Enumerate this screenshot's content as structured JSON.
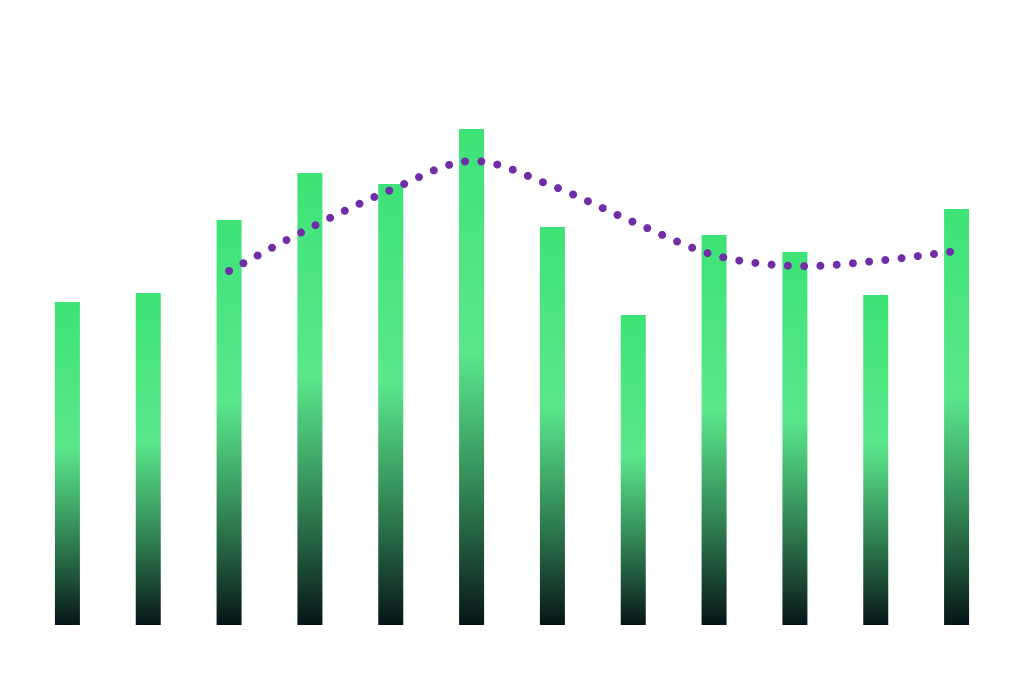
{
  "chart_data": {
    "type": "bar",
    "categories": [
      null,
      null,
      null,
      null,
      null,
      null,
      null,
      null,
      null,
      null,
      null,
      null
    ],
    "ylim": [
      0,
      557
    ],
    "series": [
      {
        "type": "bar",
        "color": "#3de377",
        "gradient_end": "#071417",
        "values": [
          323,
          332,
          405,
          452,
          441,
          496,
          398,
          310,
          390,
          373,
          330,
          416
        ]
      },
      {
        "type": "line",
        "style": "dotted",
        "color": "#6f2da8",
        "values": [
          null,
          null,
          354,
          397,
          435,
          464,
          439,
          403,
          370,
          359,
          364,
          374
        ]
      }
    ]
  }
}
